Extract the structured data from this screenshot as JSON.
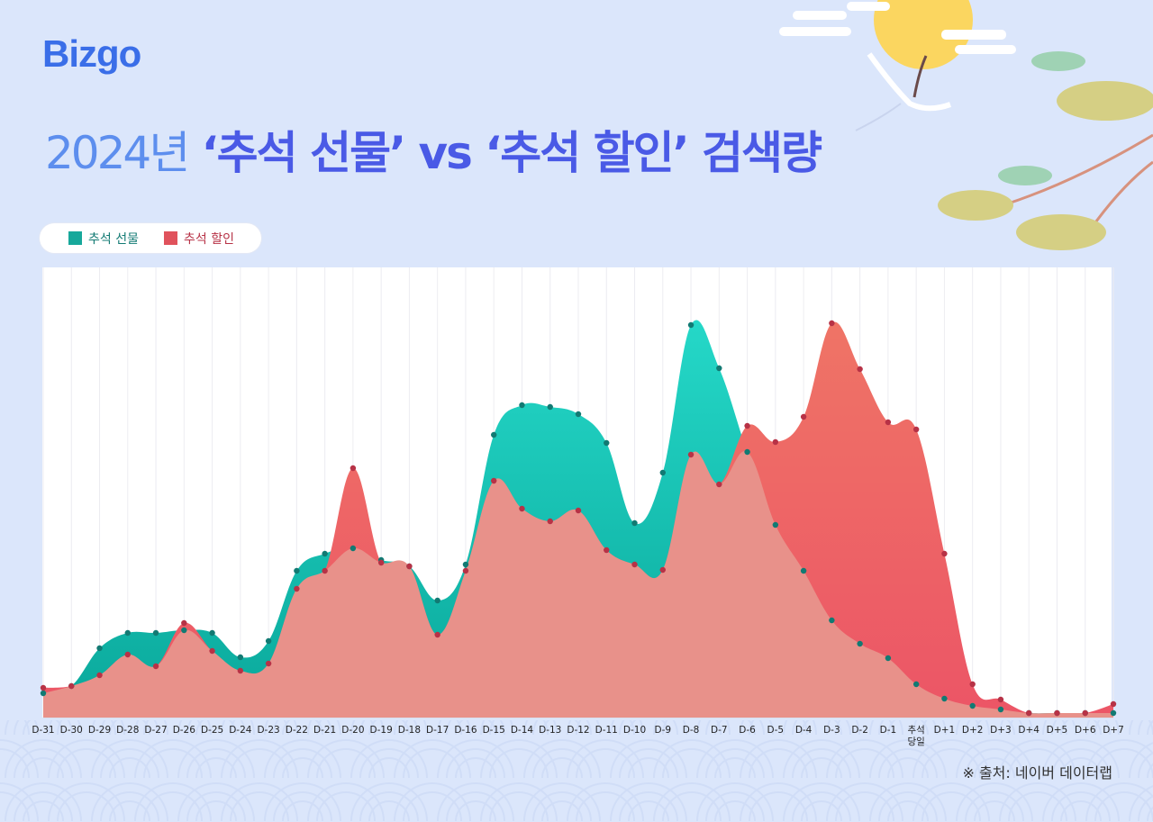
{
  "brand": "Bizgo",
  "title": {
    "year": "2024년",
    "main": "‘추석 선물’ vs ‘추석 할인’ 검색량"
  },
  "source": "※ 출처: 네이버 데이터랩",
  "colors": {
    "gift": "#1ec9b9",
    "gift_dark": "#127a73",
    "discount": "#ee6666",
    "discount_dark": "#b73246",
    "background": "#dbe6fb",
    "title_accent": "#4a5ae6"
  },
  "chart_data": {
    "type": "area",
    "title": "2024년 ‘추석 선물’ vs ‘추석 할인’ 검색량",
    "xlabel": "",
    "ylabel": "",
    "ylim": [
      0,
      100
    ],
    "grid": "vertical",
    "legend_position": "top-left",
    "categories": [
      "D-31",
      "D-30",
      "D-29",
      "D-28",
      "D-27",
      "D-26",
      "D-25",
      "D-24",
      "D-23",
      "D-22",
      "D-21",
      "D-20",
      "D-19",
      "D-18",
      "D-17",
      "D-16",
      "D-15",
      "D-14",
      "D-13",
      "D-12",
      "D-11",
      "D-10",
      "D-9",
      "D-8",
      "D-7",
      "D-6",
      "D-5",
      "D-4",
      "D-3",
      "D-2",
      "D-1",
      "추석 당일",
      "D+1",
      "D+2",
      "D+3",
      "D+4",
      "D+5",
      "D+6",
      "D+7"
    ],
    "series": [
      {
        "name": "추석 선물",
        "color": "#1ec9b9",
        "values": [
          5.4,
          7.0,
          15.4,
          18.8,
          18.8,
          19.4,
          18.8,
          13.4,
          17.0,
          32.6,
          36.4,
          37.6,
          35.0,
          33.6,
          26.0,
          34.0,
          62.8,
          69.4,
          69.0,
          67.4,
          61.0,
          43.2,
          54.4,
          87.2,
          77.6,
          59.0,
          42.8,
          32.6,
          21.6,
          16.4,
          13.2,
          7.4,
          4.2,
          2.6,
          1.8,
          1.0,
          1.0,
          1.0,
          1.0
        ]
      },
      {
        "name": "추석 할인",
        "color": "#ee6666",
        "values": [
          6.6,
          7.0,
          9.4,
          14.0,
          11.4,
          21.0,
          14.8,
          10.4,
          12.0,
          28.6,
          32.6,
          55.4,
          34.4,
          33.6,
          18.4,
          32.6,
          52.6,
          46.4,
          43.6,
          46.0,
          37.2,
          34.0,
          32.8,
          58.4,
          51.8,
          64.8,
          61.2,
          66.8,
          87.6,
          77.4,
          65.6,
          64.0,
          36.4,
          7.4,
          4.0,
          1.0,
          1.0,
          1.0,
          3.0
        ]
      }
    ]
  }
}
